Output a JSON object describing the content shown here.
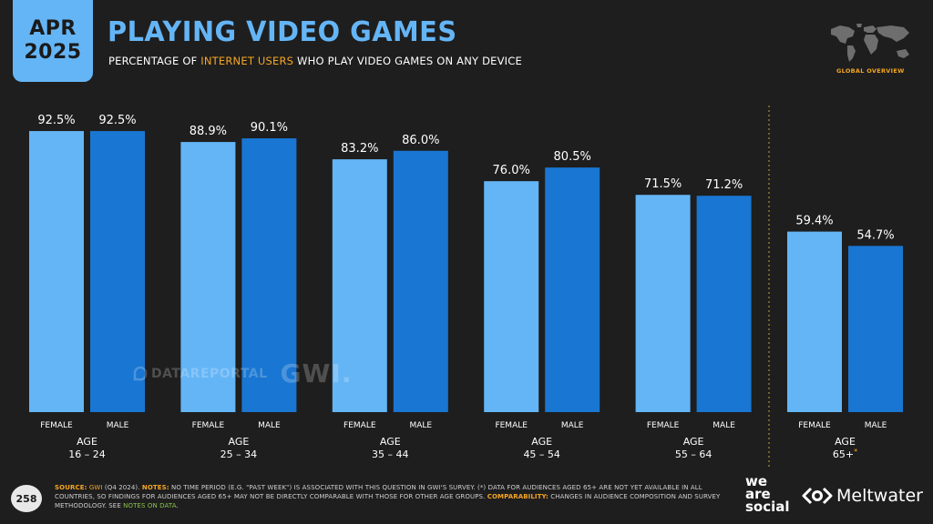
{
  "header": {
    "date_month": "APR",
    "date_year": "2025",
    "title": "PLAYING VIDEO GAMES",
    "subtitle_pre": "PERCENTAGE OF ",
    "subtitle_highlight": "INTERNET USERS",
    "subtitle_post": " WHO PLAY VIDEO GAMES ON ANY DEVICE",
    "map_label": "GLOBAL OVERVIEW"
  },
  "watermark": {
    "datareportal": "DATAREPORTAL",
    "gwi": "GWI."
  },
  "colors": {
    "female": "#64b5f6",
    "male": "#1976d2",
    "accent": "#f5a623",
    "background": "#1e1e1e"
  },
  "chart_data": {
    "type": "bar",
    "groups": [
      {
        "age_label": "AGE",
        "age_range": "16 – 24",
        "female": 92.5,
        "male": 92.5
      },
      {
        "age_label": "AGE",
        "age_range": "25 – 34",
        "female": 88.9,
        "male": 90.1
      },
      {
        "age_label": "AGE",
        "age_range": "35 – 44",
        "female": 83.2,
        "male": 86.0
      },
      {
        "age_label": "AGE",
        "age_range": "45 – 54",
        "female": 76.0,
        "male": 80.5
      },
      {
        "age_label": "AGE",
        "age_range": "55 – 64",
        "female": 71.5,
        "male": 71.2
      },
      {
        "age_label": "AGE",
        "age_range": "65+",
        "age_note": "*",
        "female": 59.4,
        "male": 54.7
      }
    ],
    "series": [
      {
        "name": "FEMALE",
        "values": [
          92.5,
          88.9,
          83.2,
          76.0,
          71.5,
          59.4
        ]
      },
      {
        "name": "MALE",
        "values": [
          92.5,
          90.1,
          86.0,
          80.5,
          71.2,
          54.7
        ]
      }
    ],
    "value_suffix": "%",
    "ylim": [
      0,
      100
    ],
    "grid": false,
    "separator_before_group": "65+"
  },
  "footer": {
    "page_number": "258",
    "source_key": "SOURCE:",
    "source_name": "GWI",
    "source_detail": " (Q4 2024). ",
    "notes_key": "NOTES:",
    "notes_text": " NO TIME PERIOD (E.G. \"PAST WEEK\") IS ASSOCIATED WITH THIS QUESTION IN GWI'S SURVEY. (*) DATA FOR AUDIENCES AGED 65+ ARE NOT YET AVAILABLE IN ALL COUNTRIES, SO FINDINGS FOR AUDIENCES AGED 65+ MAY NOT BE DIRECTLY COMPARABLE WITH THOSE FOR OTHER AGE GROUPS. ",
    "comparability_key": "COMPARABILITY:",
    "comparability_text": " CHANGES IN AUDIENCE COMPOSITION AND SURVEY METHODOLOGY. SEE ",
    "notes_link": "NOTES ON DATA",
    "end": ".",
    "brand_we": "we",
    "brand_are": "are",
    "brand_social": "social",
    "brand_meltwater": "Meltwater"
  }
}
